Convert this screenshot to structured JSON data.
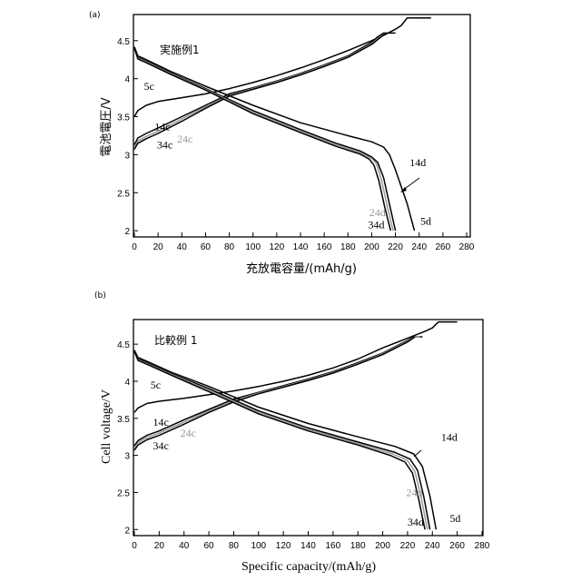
{
  "chart_data": [
    {
      "type": "line",
      "panel_label": "(a)",
      "title": "実施例1",
      "xlabel": "充放電容量/(mAh/g)",
      "ylabel": "電池電圧/V",
      "xlim": [
        0,
        280
      ],
      "ylim": [
        1.93,
        4.82
      ],
      "xticks": [
        "0",
        "20",
        "40",
        "60",
        "80",
        "100",
        "120",
        "140",
        "160",
        "180",
        "200",
        "220",
        "240",
        "260",
        "280"
      ],
      "yticks": [
        "2",
        "2.5",
        "3",
        "3.5",
        "4",
        "4.5"
      ],
      "grid": false,
      "series": [
        {
          "name": "5c",
          "kind": "charge",
          "color": "#000000",
          "x": [
            0,
            3,
            10,
            20,
            40,
            60,
            80,
            100,
            120,
            140,
            160,
            180,
            200,
            210,
            220,
            225,
            230,
            250
          ],
          "y": [
            3.5,
            3.58,
            3.65,
            3.7,
            3.75,
            3.8,
            3.87,
            3.95,
            4.04,
            4.14,
            4.25,
            4.37,
            4.5,
            4.57,
            4.65,
            4.7,
            4.8,
            4.8
          ]
        },
        {
          "name": "14c",
          "kind": "charge",
          "color": "#000000",
          "x": [
            0,
            3,
            10,
            20,
            40,
            60,
            80,
            100,
            120,
            140,
            160,
            180,
            200,
            205,
            210,
            220
          ],
          "y": [
            3.13,
            3.22,
            3.28,
            3.35,
            3.5,
            3.65,
            3.8,
            3.88,
            3.97,
            4.07,
            4.18,
            4.3,
            4.48,
            4.55,
            4.6,
            4.6
          ]
        },
        {
          "name": "24c",
          "kind": "charge",
          "color": "#999999",
          "x": [
            0,
            3,
            10,
            20,
            40,
            60,
            80,
            100,
            120,
            140,
            160,
            180,
            200,
            207,
            212
          ],
          "y": [
            3.1,
            3.18,
            3.24,
            3.31,
            3.47,
            3.63,
            3.78,
            3.87,
            3.96,
            4.06,
            4.17,
            4.29,
            4.46,
            4.55,
            4.6
          ]
        },
        {
          "name": "34c",
          "kind": "charge",
          "color": "#000000",
          "x": [
            0,
            3,
            10,
            20,
            40,
            60,
            80,
            100,
            120,
            140,
            160,
            180,
            200,
            208,
            212
          ],
          "y": [
            3.07,
            3.15,
            3.21,
            3.28,
            3.44,
            3.61,
            3.77,
            3.86,
            3.95,
            4.05,
            4.16,
            4.28,
            4.45,
            4.55,
            4.6
          ]
        },
        {
          "name": "5d",
          "kind": "discharge",
          "color": "#000000",
          "x": [
            0,
            3,
            10,
            30,
            60,
            100,
            140,
            180,
            200,
            210,
            215,
            220,
            230,
            236
          ],
          "y": [
            4.42,
            4.3,
            4.25,
            4.1,
            3.9,
            3.65,
            3.42,
            3.25,
            3.17,
            3.1,
            3.0,
            2.8,
            2.35,
            2.0
          ]
        },
        {
          "name": "14d",
          "kind": "discharge",
          "color": "#000000",
          "x": [
            0,
            3,
            10,
            30,
            60,
            100,
            140,
            170,
            190,
            200,
            205,
            210,
            215,
            220
          ],
          "y": [
            4.4,
            4.28,
            4.23,
            4.08,
            3.87,
            3.58,
            3.33,
            3.15,
            3.05,
            2.97,
            2.9,
            2.7,
            2.35,
            2.0
          ]
        },
        {
          "name": "24d",
          "kind": "discharge",
          "color": "#999999",
          "x": [
            0,
            3,
            10,
            30,
            60,
            100,
            140,
            170,
            190,
            200,
            204,
            208,
            213,
            218
          ],
          "y": [
            4.4,
            4.27,
            4.22,
            4.07,
            3.86,
            3.56,
            3.31,
            3.13,
            3.03,
            2.95,
            2.88,
            2.68,
            2.33,
            2.0
          ]
        },
        {
          "name": "34d",
          "kind": "discharge",
          "color": "#000000",
          "x": [
            0,
            3,
            10,
            30,
            60,
            100,
            140,
            170,
            190,
            198,
            202,
            206,
            211,
            216
          ],
          "y": [
            4.4,
            4.26,
            4.21,
            4.06,
            3.85,
            3.54,
            3.29,
            3.11,
            3.01,
            2.94,
            2.86,
            2.66,
            2.31,
            2.0
          ]
        }
      ],
      "annotations": [
        {
          "text": "5c",
          "x": 8,
          "y": 3.85,
          "color": "#000000"
        },
        {
          "text": "14c",
          "x": 17,
          "y": 3.32,
          "color": "#000000"
        },
        {
          "text": "24c",
          "x": 36,
          "y": 3.16,
          "color": "#999999"
        },
        {
          "text": "34c",
          "x": 19,
          "y": 3.08,
          "color": "#000000"
        },
        {
          "text": "14d",
          "x": 232,
          "y": 2.85,
          "color": "#000000"
        },
        {
          "text": "24d",
          "x": 198,
          "y": 2.19,
          "color": "#999999"
        },
        {
          "text": "34d",
          "x": 197,
          "y": 2.03,
          "color": "#000000"
        },
        {
          "text": "5d",
          "x": 241,
          "y": 2.08,
          "color": "#000000"
        }
      ]
    },
    {
      "type": "line",
      "panel_label": "(b)",
      "title": "比較例 1",
      "xlabel": "Specific capacity/(mAh/g)",
      "ylabel": "Cell voltage/V",
      "xlim": [
        0,
        280
      ],
      "ylim": [
        1.93,
        4.82
      ],
      "xticks": [
        "0",
        "20",
        "40",
        "60",
        "80",
        "100",
        "120",
        "140",
        "160",
        "180",
        "200",
        "220",
        "240",
        "260",
        "280"
      ],
      "yticks": [
        "2",
        "2.5",
        "3",
        "3.5",
        "4",
        "4.5"
      ],
      "grid": false,
      "series": [
        {
          "name": "5c",
          "kind": "charge",
          "color": "#000000",
          "x": [
            0,
            3,
            10,
            20,
            40,
            60,
            80,
            100,
            120,
            140,
            160,
            180,
            200,
            220,
            235,
            240,
            245,
            260
          ],
          "y": [
            3.58,
            3.64,
            3.7,
            3.73,
            3.77,
            3.82,
            3.87,
            3.93,
            4.0,
            4.08,
            4.18,
            4.3,
            4.45,
            4.58,
            4.68,
            4.72,
            4.8,
            4.8
          ]
        },
        {
          "name": "14c",
          "kind": "charge",
          "color": "#000000",
          "x": [
            0,
            3,
            10,
            20,
            40,
            60,
            80,
            100,
            120,
            140,
            160,
            180,
            200,
            220,
            225,
            232
          ],
          "y": [
            3.13,
            3.2,
            3.27,
            3.33,
            3.48,
            3.62,
            3.76,
            3.85,
            3.94,
            4.03,
            4.13,
            4.25,
            4.38,
            4.55,
            4.6,
            4.6
          ]
        },
        {
          "name": "24c",
          "kind": "charge",
          "color": "#999999",
          "x": [
            0,
            3,
            10,
            20,
            40,
            60,
            80,
            100,
            120,
            140,
            160,
            180,
            200,
            220,
            226,
            230
          ],
          "y": [
            3.1,
            3.17,
            3.24,
            3.3,
            3.45,
            3.6,
            3.74,
            3.84,
            3.93,
            4.02,
            4.12,
            4.24,
            4.37,
            4.54,
            4.6,
            4.6
          ]
        },
        {
          "name": "34c",
          "kind": "charge",
          "color": "#000000",
          "x": [
            0,
            3,
            10,
            20,
            40,
            60,
            80,
            100,
            120,
            140,
            160,
            180,
            200,
            220,
            226
          ],
          "y": [
            3.07,
            3.14,
            3.21,
            3.27,
            3.42,
            3.58,
            3.72,
            3.83,
            3.92,
            4.01,
            4.11,
            4.23,
            4.36,
            4.53,
            4.6
          ]
        },
        {
          "name": "5d",
          "kind": "discharge",
          "color": "#000000",
          "x": [
            0,
            3,
            10,
            30,
            60,
            100,
            140,
            180,
            210,
            225,
            232,
            238,
            243
          ],
          "y": [
            4.42,
            4.32,
            4.27,
            4.12,
            3.93,
            3.65,
            3.43,
            3.25,
            3.12,
            3.02,
            2.85,
            2.45,
            2.0
          ]
        },
        {
          "name": "14d",
          "kind": "discharge",
          "color": "#000000",
          "x": [
            0,
            3,
            10,
            30,
            60,
            100,
            140,
            180,
            210,
            222,
            228,
            233,
            238
          ],
          "y": [
            4.4,
            4.3,
            4.25,
            4.1,
            3.9,
            3.6,
            3.37,
            3.18,
            3.04,
            2.95,
            2.8,
            2.45,
            2.0
          ]
        },
        {
          "name": "24d",
          "kind": "discharge",
          "color": "#999999",
          "x": [
            0,
            3,
            10,
            30,
            60,
            100,
            140,
            180,
            208,
            220,
            226,
            231,
            236
          ],
          "y": [
            4.4,
            4.29,
            4.24,
            4.09,
            3.88,
            3.58,
            3.35,
            3.16,
            3.02,
            2.93,
            2.78,
            2.43,
            2.0
          ]
        },
        {
          "name": "34d",
          "kind": "discharge",
          "color": "#000000",
          "x": [
            0,
            3,
            10,
            30,
            60,
            100,
            140,
            180,
            206,
            218,
            224,
            229,
            234
          ],
          "y": [
            4.4,
            4.28,
            4.23,
            4.08,
            3.86,
            3.56,
            3.33,
            3.14,
            3.0,
            2.91,
            2.76,
            2.41,
            2.0
          ]
        }
      ],
      "annotations": [
        {
          "text": "5c",
          "x": 13,
          "y": 3.9,
          "color": "#000000"
        },
        {
          "text": "14c",
          "x": 15,
          "y": 3.4,
          "color": "#000000"
        },
        {
          "text": "24c",
          "x": 37,
          "y": 3.25,
          "color": "#999999"
        },
        {
          "text": "34c",
          "x": 15,
          "y": 3.08,
          "color": "#000000"
        },
        {
          "text": "14d",
          "x": 247,
          "y": 3.2,
          "color": "#000000"
        },
        {
          "text": "24d",
          "x": 219,
          "y": 2.45,
          "color": "#999999"
        },
        {
          "text": "34d",
          "x": 220,
          "y": 2.05,
          "color": "#000000"
        },
        {
          "text": "5d",
          "x": 254,
          "y": 2.1,
          "color": "#000000"
        }
      ]
    }
  ]
}
